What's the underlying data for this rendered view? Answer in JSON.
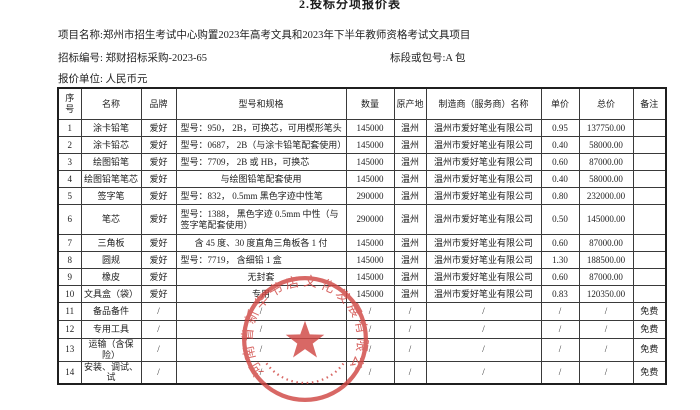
{
  "page": {
    "title": "2.投标分项报价表"
  },
  "meta": {
    "project": "项目名称:郑州市招生考试中心购置2023年高考文具和2023年下半年教师资格考试文具项目",
    "tender_no": "招标编号: 郑财招标采购-2023-65",
    "package": "标段或包号:A 包",
    "currency": "报价单位: 人民币元"
  },
  "table": {
    "headers": [
      "序号",
      "名称",
      "品牌",
      "型号和规格",
      "数量",
      "原产地",
      "制造商（服务商）名称",
      "单价",
      "总价",
      "备注"
    ],
    "rows": [
      [
        "1",
        "涂卡铅笔",
        "爱好",
        "型号：950，    2B，可换芯，可用楔形笔头",
        "145000",
        "温州",
        "温州市爱好笔业有限公司",
        "0.95",
        "137750.00",
        ""
      ],
      [
        "2",
        "涂卡铅芯",
        "爱好",
        "型号：0687，   2B（与涂卡铅笔配套使用）",
        "145000",
        "温州",
        "温州市爱好笔业有限公司",
        "0.40",
        "58000.00",
        ""
      ],
      [
        "3",
        "绘图铅笔",
        "爱好",
        "型号：7709，   2B 或 HB，可换芯",
        "145000",
        "温州",
        "温州市爱好笔业有限公司",
        "0.60",
        "87000.00",
        ""
      ],
      [
        "4",
        "绘图铅笔笔芯",
        "爱好",
        "与绘图铅笔配套使用",
        "145000",
        "温州",
        "温州市爱好笔业有限公司",
        "0.40",
        "58000.00",
        ""
      ],
      [
        "5",
        "签字笔",
        "爱好",
        "型号：832，   0.5mm 黑色字迹中性笔",
        "290000",
        "温州",
        "温州市爱好笔业有限公司",
        "0.80",
        "232000.00",
        ""
      ],
      [
        "6",
        "笔芯",
        "爱好",
        "型号：1388，   黑色字迹 0.5mm 中性（与签字笔配套使用）",
        "290000",
        "温州",
        "温州市爱好笔业有限公司",
        "0.50",
        "145000.00",
        ""
      ],
      [
        "7",
        "三角板",
        "爱好",
        "含 45 度、30 度直角三角板各 1 付",
        "145000",
        "温州",
        "温州市爱好笔业有限公司",
        "0.60",
        "87000.00",
        ""
      ],
      [
        "8",
        "圆规",
        "爱好",
        "型号：7719，    含细铅 1 盒",
        "145000",
        "温州",
        "温州市爱好笔业有限公司",
        "1.30",
        "188500.00",
        ""
      ],
      [
        "9",
        "橡皮",
        "爱好",
        "无封套",
        "145000",
        "温州",
        "温州市爱好笔业有限公司",
        "0.60",
        "87000.00",
        ""
      ],
      [
        "10",
        "文具盒（袋）",
        "爱好",
        "专用",
        "145000",
        "温州",
        "温州市爱好笔业有限公司",
        "0.83",
        "120350.00",
        ""
      ],
      [
        "11",
        "备品备件",
        "/",
        "/",
        "/",
        "/",
        "/",
        "/",
        "/",
        "免费"
      ],
      [
        "12",
        "专用工具",
        "/",
        "/",
        "/",
        "/",
        "/",
        "/",
        "/",
        "免费"
      ],
      [
        "13",
        "运输（含保险）",
        "/",
        "/",
        "/",
        "/",
        "/",
        "/",
        "/",
        "免费"
      ],
      [
        "14",
        "安装、调试、试",
        "/",
        "/",
        "/",
        "/",
        "/",
        "/",
        "/",
        "免费"
      ]
    ]
  },
  "stamp": {
    "company": "河南省新华书店文化发展有限公司",
    "color": "#d04744"
  }
}
